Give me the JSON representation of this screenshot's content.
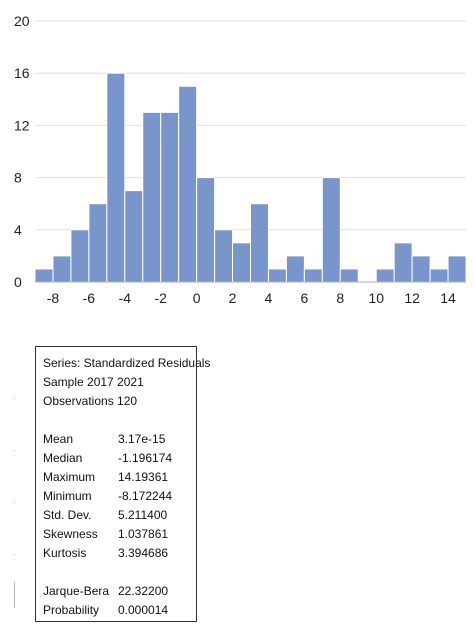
{
  "chart_data": {
    "type": "bar",
    "title": "",
    "xlabel": "",
    "ylabel": "",
    "bin_width": 1,
    "bins_start": [
      -9,
      -8,
      -7,
      -6,
      -5,
      -4,
      -3,
      -2,
      -1,
      0,
      1,
      2,
      3,
      4,
      5,
      6,
      7,
      8,
      9,
      10,
      11,
      12,
      13,
      14
    ],
    "values": [
      1,
      2,
      4,
      6,
      16,
      7,
      13,
      13,
      15,
      8,
      4,
      3,
      6,
      1,
      2,
      1,
      8,
      1,
      0,
      1,
      3,
      2,
      1,
      2
    ],
    "xlim": [
      -9,
      15
    ],
    "ylim": [
      0,
      20
    ],
    "x_ticks": [
      -8,
      -6,
      -4,
      -2,
      0,
      2,
      4,
      6,
      8,
      10,
      12,
      14
    ],
    "y_ticks": [
      0,
      4,
      8,
      12,
      16,
      20
    ],
    "grid": true,
    "bar_color": "#7896cc",
    "bar_edge_color": "#ffffff",
    "grid_color": "#e0e0e0"
  },
  "stats": {
    "series_line": "Series: Standardized Residuals",
    "sample_line": "Sample 2017 2021",
    "observations_line": "Observations 120",
    "rows": [
      {
        "label": "Mean",
        "value": "3.17e-15"
      },
      {
        "label": "Median",
        "value": "-1.196174"
      },
      {
        "label": "Maximum",
        "value": "14.19361"
      },
      {
        "label": "Minimum",
        "value": "-8.172244"
      },
      {
        "label": "Std. Dev.",
        "value": "5.211400"
      },
      {
        "label": "Skewness",
        "value": "1.037861"
      },
      {
        "label": "Kurtosis",
        "value": "3.394686"
      }
    ],
    "tests": [
      {
        "label": "Jarque-Bera",
        "value": "22.32200"
      },
      {
        "label": "Probability",
        "value": "0.000014"
      }
    ]
  }
}
